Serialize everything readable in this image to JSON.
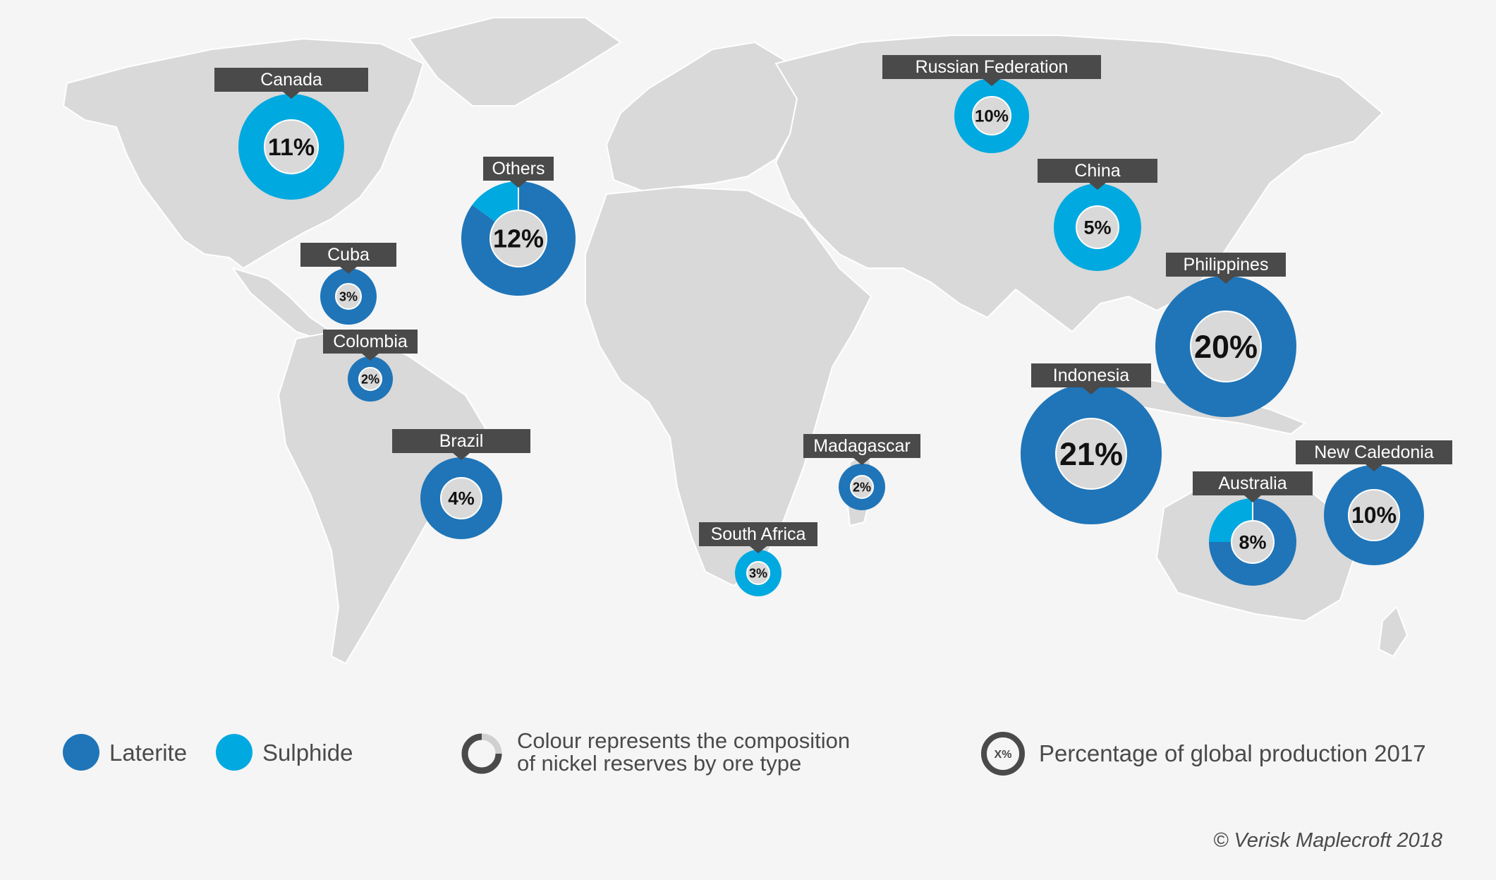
{
  "colors": {
    "laterite": "#1f75b8",
    "sulphide": "#00a9e0",
    "land": "#d9d9d9",
    "land_border": "#ffffff",
    "label_bg": "#4a4a4a",
    "label_text": "#ffffff",
    "center_fill": "#d9d9d9",
    "center_text": "#111111",
    "background": "#f5f5f5"
  },
  "chart_data": {
    "type": "map-donuts",
    "series_names": [
      "Laterite",
      "Sulphide"
    ],
    "countries": [
      {
        "id": "canada",
        "name": "Canada",
        "pct": 11,
        "pct_label": "11%",
        "laterite_share": 0.0
      },
      {
        "id": "cuba",
        "name": "Cuba",
        "pct": 3,
        "pct_label": "3%",
        "laterite_share": 1.0
      },
      {
        "id": "colombia",
        "name": "Colombia",
        "pct": 2,
        "pct_label": "2%",
        "laterite_share": 1.0
      },
      {
        "id": "brazil",
        "name": "Brazil",
        "pct": 4,
        "pct_label": "4%",
        "laterite_share": 1.0
      },
      {
        "id": "others",
        "name": "Others",
        "pct": 12,
        "pct_label": "12%",
        "laterite_share": 0.85
      },
      {
        "id": "south-africa",
        "name": "South Africa",
        "pct": 3,
        "pct_label": "3%",
        "laterite_share": 0.0
      },
      {
        "id": "madagascar",
        "name": "Madagascar",
        "pct": 2,
        "pct_label": "2%",
        "laterite_share": 1.0
      },
      {
        "id": "russian-federation",
        "name": "Russian Federation",
        "pct": 10,
        "pct_label": "10%",
        "laterite_share": 0.0
      },
      {
        "id": "china",
        "name": "China",
        "pct": 5,
        "pct_label": "5%",
        "laterite_share": 0.0
      },
      {
        "id": "philippines",
        "name": "Philippines",
        "pct": 20,
        "pct_label": "20%",
        "laterite_share": 1.0
      },
      {
        "id": "indonesia",
        "name": "Indonesia",
        "pct": 21,
        "pct_label": "21%",
        "laterite_share": 1.0
      },
      {
        "id": "australia",
        "name": "Australia",
        "pct": 8,
        "pct_label": "8%",
        "laterite_share": 0.75
      },
      {
        "id": "new-caledonia",
        "name": "New Caledonia",
        "pct": 10,
        "pct_label": "10%",
        "laterite_share": 1.0
      }
    ]
  },
  "legend": {
    "laterite_label": "Laterite",
    "sulphide_label": "Sulphide",
    "composition_line1": "Colour represents the composition",
    "composition_line2": "of nickel reserves by ore type",
    "percentage_icon_text": "X%",
    "percentage_label": "Percentage of global production 2017"
  },
  "copyright": "© Verisk Maplecroft 2018"
}
